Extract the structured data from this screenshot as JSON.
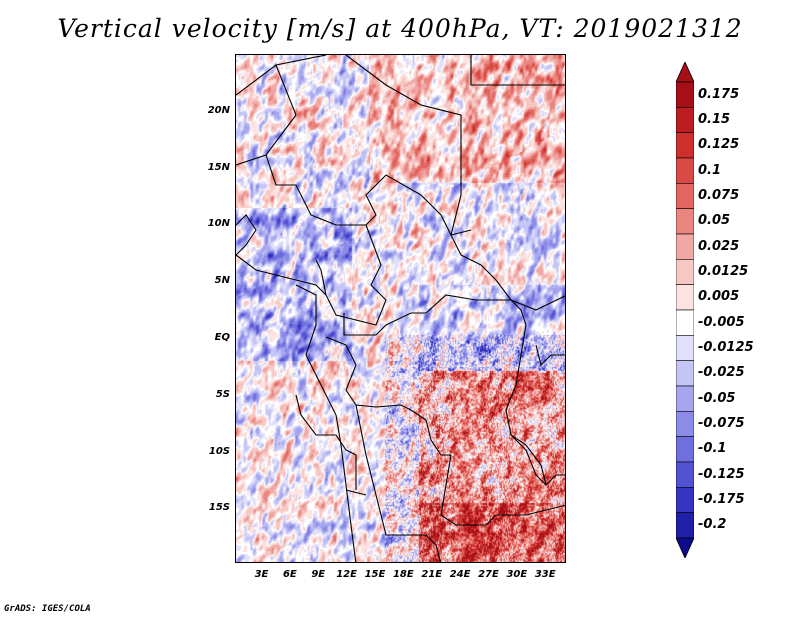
{
  "title": "Vertical velocity [m/s] at 400hPa, VT: 2019021312",
  "credit": "GrADS: IGES/COLA",
  "map": {
    "lat_ticks": [
      {
        "label": "20N",
        "lat": 20
      },
      {
        "label": "15N",
        "lat": 15
      },
      {
        "label": "10N",
        "lat": 10
      },
      {
        "label": "5N",
        "lat": 5
      },
      {
        "label": "EQ",
        "lat": 0
      },
      {
        "label": "5S",
        "lat": -5
      },
      {
        "label": "10S",
        "lat": -10
      },
      {
        "label": "15S",
        "lat": -15
      }
    ],
    "lon_ticks": [
      {
        "label": "3E",
        "lon": 3
      },
      {
        "label": "6E",
        "lon": 6
      },
      {
        "label": "9E",
        "lon": 9
      },
      {
        "label": "12E",
        "lon": 12
      },
      {
        "label": "15E",
        "lon": 15
      },
      {
        "label": "18E",
        "lon": 18
      },
      {
        "label": "21E",
        "lon": 21
      },
      {
        "label": "24E",
        "lon": 24
      },
      {
        "label": "27E",
        "lon": 27
      },
      {
        "label": "30E",
        "lon": 30
      },
      {
        "label": "33E",
        "lon": 33
      }
    ],
    "extent": {
      "lon_min": 0.2,
      "lon_max": 35.2,
      "lat_min": -19.8,
      "lat_max": 25.0
    }
  },
  "colorbar": {
    "levels": [
      {
        "label": "0.175",
        "color": "#a50f15"
      },
      {
        "label": "0.15",
        "color": "#bb1d20"
      },
      {
        "label": "0.125",
        "color": "#cc2f2c"
      },
      {
        "label": "0.1",
        "color": "#d94a44"
      },
      {
        "label": "0.075",
        "color": "#e2665f"
      },
      {
        "label": "0.05",
        "color": "#ea8580"
      },
      {
        "label": "0.025",
        "color": "#f1a7a3"
      },
      {
        "label": "0.0125",
        "color": "#f7c7c4"
      },
      {
        "label": "0.005",
        "color": "#fbe3e1"
      },
      {
        "label": "-0.005",
        "color": "#ffffff"
      },
      {
        "label": "-0.0125",
        "color": "#e0e0fb"
      },
      {
        "label": "-0.025",
        "color": "#c4c4f6"
      },
      {
        "label": "-0.05",
        "color": "#a6a6ef"
      },
      {
        "label": "-0.075",
        "color": "#8b8be8"
      },
      {
        "label": "-0.1",
        "color": "#6f6fdf"
      },
      {
        "label": "-0.125",
        "color": "#5252d2"
      },
      {
        "label": "-0.175",
        "color": "#3434c0"
      },
      {
        "label": "-0.2",
        "color": "#1f1fa8"
      }
    ],
    "top_triangle_color": "#a50f15",
    "bottom_triangle_color": "#0c0c8c"
  }
}
